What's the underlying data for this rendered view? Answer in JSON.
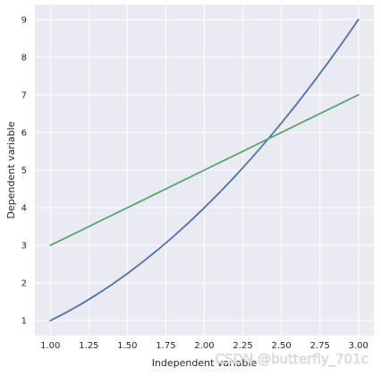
{
  "chart_data": {
    "type": "line",
    "title": "",
    "xlabel": "Independent variable",
    "ylabel": "Dependent variable",
    "xlim": [
      0.9,
      3.1
    ],
    "ylim": [
      0.6,
      9.4
    ],
    "x_ticks": [
      "1.00",
      "1.25",
      "1.50",
      "1.75",
      "2.00",
      "2.25",
      "2.50",
      "2.75",
      "3.00"
    ],
    "y_ticks": [
      "1",
      "2",
      "3",
      "4",
      "5",
      "6",
      "7",
      "8",
      "9"
    ],
    "grid": true,
    "background": "#eaeaf2",
    "x": [
      1.0,
      1.1,
      1.2,
      1.3,
      1.4,
      1.5,
      1.6,
      1.7,
      1.8,
      1.9,
      2.0,
      2.1,
      2.2,
      2.3,
      2.4,
      2.5,
      2.6,
      2.7,
      2.8,
      2.9,
      3.0
    ],
    "series": [
      {
        "color": "#4c72b0",
        "values": [
          1.0,
          1.21,
          1.44,
          1.69,
          1.96,
          2.25,
          2.56,
          2.89,
          3.24,
          3.61,
          4.0,
          4.41,
          4.84,
          5.29,
          5.76,
          6.25,
          6.76,
          7.29,
          7.84,
          8.41,
          9.0
        ]
      },
      {
        "color": "#55a868",
        "values": [
          3.0,
          3.2,
          3.4,
          3.6,
          3.8,
          4.0,
          4.2,
          4.4,
          4.6,
          4.8,
          5.0,
          5.2,
          5.4,
          5.6,
          5.8,
          6.0,
          6.2,
          6.4,
          6.6,
          6.8,
          7.0
        ]
      }
    ]
  },
  "watermark": "CSDN @butterfly_701c"
}
